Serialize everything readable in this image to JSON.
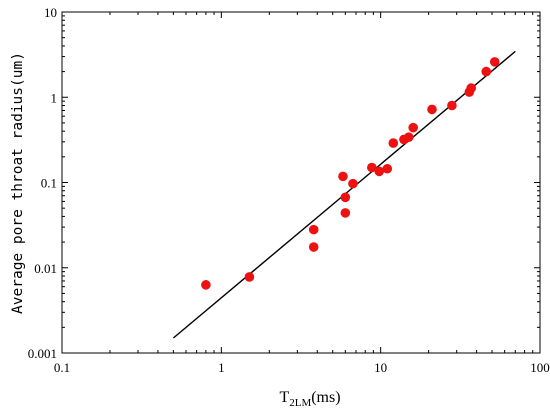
{
  "chart_data": {
    "type": "scatter",
    "title": "",
    "xlabel": {
      "main": "T",
      "sub": "2LM",
      "unit": "(ms)"
    },
    "ylabel": "Average pore throat radius(um)",
    "xscale": "log",
    "yscale": "log",
    "xlim": [
      0.1,
      100
    ],
    "ylim": [
      0.001,
      10
    ],
    "grid": false,
    "legend": "none",
    "x_tick_labels": [
      "0.1",
      "1",
      "10",
      "100"
    ],
    "y_tick_labels": [
      "0.001",
      "0.01",
      "0.1",
      "1",
      "10"
    ],
    "series": [
      {
        "marker_color": "#ee1111",
        "points": [
          [
            0.8,
            0.0063
          ],
          [
            1.5,
            0.0078
          ],
          [
            3.8,
            0.028
          ],
          [
            3.8,
            0.0175
          ],
          [
            5.8,
            0.118
          ],
          [
            6.0,
            0.067
          ],
          [
            6.0,
            0.044
          ],
          [
            6.7,
            0.097
          ],
          [
            8.8,
            0.15
          ],
          [
            9.8,
            0.135
          ],
          [
            11.0,
            0.145
          ],
          [
            12.0,
            0.29
          ],
          [
            14.0,
            0.32
          ],
          [
            15.0,
            0.34
          ],
          [
            16.0,
            0.44
          ],
          [
            21.0,
            0.72
          ],
          [
            28.0,
            0.8
          ],
          [
            36.0,
            1.15
          ],
          [
            37.0,
            1.28
          ],
          [
            46.0,
            2.0
          ],
          [
            52.0,
            2.6
          ]
        ]
      }
    ],
    "fit_line": {
      "color": "#000000",
      "x": [
        0.5,
        70
      ],
      "y": [
        0.0015,
        3.45
      ]
    }
  }
}
